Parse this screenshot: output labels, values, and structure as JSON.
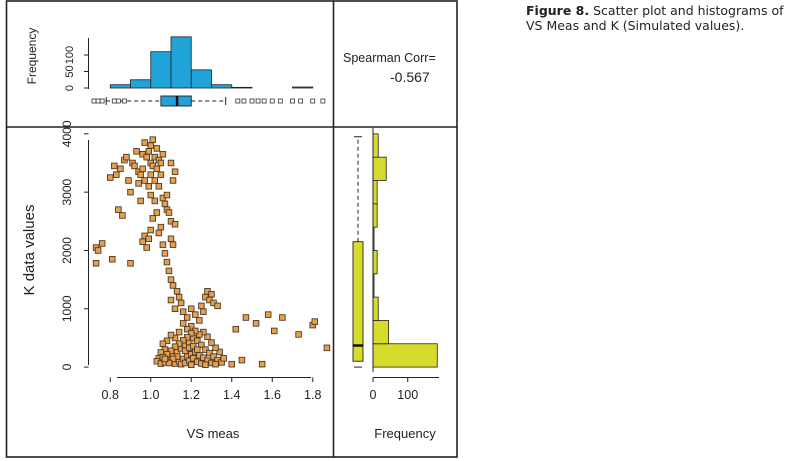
{
  "caption": {
    "label": "Figure 8.",
    "text": "Scatter plot and histograms of VS Meas and K (Simulated values)."
  },
  "colors": {
    "frame": "#222222",
    "top_hist_fill": "#1fa3d9",
    "right_hist_fill": "#d7dc2c",
    "point_fill": "#e6a04e",
    "point_stroke": "#4a3a28"
  },
  "chart_data": {
    "type": "scatter",
    "title": "",
    "xlabel": "VS meas",
    "ylabel": "K data values",
    "xlim": [
      0.7,
      1.9
    ],
    "ylim": [
      -50,
      4100
    ],
    "xticks": [
      "0.8",
      "1.0",
      "1.2",
      "1.4",
      "1.6",
      "1.8"
    ],
    "yticks": [
      "0",
      "1000",
      "2000",
      "3000",
      "4000"
    ],
    "annotation": {
      "label": "Spearman Corr=",
      "value": "-0.567"
    },
    "top_histogram": {
      "ylabel": "Frequency",
      "yticks": [
        "0",
        "50",
        "100"
      ],
      "bin_edges": [
        0.7,
        0.8,
        0.9,
        1.0,
        1.1,
        1.2,
        1.3,
        1.4,
        1.5,
        1.6,
        1.7,
        1.8,
        1.9
      ],
      "counts": [
        0,
        10,
        25,
        110,
        155,
        55,
        10,
        2,
        0,
        0,
        3,
        0
      ],
      "boxplot": {
        "whisker_low": 0.78,
        "q1": 1.05,
        "median": 1.13,
        "q3": 1.2,
        "whisker_high": 1.37,
        "outliers": [
          0.72,
          0.74,
          0.76,
          0.82,
          0.84,
          0.87,
          1.43,
          1.46,
          1.5,
          1.53,
          1.56,
          1.6,
          1.64,
          1.7,
          1.74,
          1.8,
          1.85
        ]
      }
    },
    "right_histogram": {
      "xlabel": "Frequency",
      "xticks": [
        "0",
        "100"
      ],
      "xlim": [
        0,
        190
      ],
      "bin_edges": [
        0,
        400,
        800,
        1200,
        1600,
        2000,
        2400,
        2800,
        3200,
        3600,
        4000
      ],
      "counts": [
        185,
        45,
        15,
        3,
        12,
        3,
        12,
        12,
        38,
        15
      ],
      "boxplot": {
        "whisker_low": 0,
        "q1": 100,
        "median": 370,
        "q3": 2150,
        "whisker_high": 3950
      }
    },
    "points": [
      [
        0.73,
        2050
      ],
      [
        0.74,
        2000
      ],
      [
        0.73,
        1780
      ],
      [
        0.76,
        2120
      ],
      [
        0.81,
        1850
      ],
      [
        0.82,
        3450
      ],
      [
        0.8,
        3250
      ],
      [
        0.83,
        3300
      ],
      [
        0.84,
        2700
      ],
      [
        0.86,
        2600
      ],
      [
        0.85,
        3400
      ],
      [
        0.87,
        3550
      ],
      [
        0.88,
        3600
      ],
      [
        0.89,
        3200
      ],
      [
        0.9,
        3000
      ],
      [
        0.9,
        1780
      ],
      [
        0.91,
        3500
      ],
      [
        0.92,
        3450
      ],
      [
        0.93,
        3700
      ],
      [
        0.94,
        3350
      ],
      [
        0.94,
        3150
      ],
      [
        0.95,
        3300
      ],
      [
        0.95,
        2850
      ],
      [
        0.96,
        3400
      ],
      [
        0.96,
        3650
      ],
      [
        0.97,
        3850
      ],
      [
        0.97,
        3200
      ],
      [
        0.98,
        3600
      ],
      [
        0.99,
        3700
      ],
      [
        0.99,
        3100
      ],
      [
        1.0,
        3800
      ],
      [
        1.0,
        3500
      ],
      [
        1.0,
        3300
      ],
      [
        1.01,
        3900
      ],
      [
        1.01,
        3450
      ],
      [
        1.02,
        3600
      ],
      [
        1.02,
        3200
      ],
      [
        1.03,
        3750
      ],
      [
        1.03,
        3400
      ],
      [
        1.04,
        3550
      ],
      [
        1.04,
        3100
      ],
      [
        1.05,
        3500
      ],
      [
        1.05,
        3300
      ],
      [
        1.06,
        3650
      ],
      [
        1.06,
        2900
      ],
      [
        1.07,
        2800
      ],
      [
        1.08,
        2700
      ],
      [
        1.08,
        2950
      ],
      [
        1.09,
        2650
      ],
      [
        1.1,
        2500
      ],
      [
        1.1,
        2200
      ],
      [
        1.11,
        2100
      ],
      [
        1.12,
        2450
      ],
      [
        1.0,
        2950
      ],
      [
        1.02,
        2850
      ],
      [
        1.01,
        2550
      ],
      [
        1.03,
        2650
      ],
      [
        1.04,
        2300
      ],
      [
        0.97,
        2250
      ],
      [
        0.98,
        2050
      ],
      [
        0.96,
        2150
      ],
      [
        0.99,
        2200
      ],
      [
        1.0,
        2350
      ],
      [
        1.05,
        2400
      ],
      [
        1.06,
        2100
      ],
      [
        1.07,
        1950
      ],
      [
        1.08,
        1800
      ],
      [
        1.09,
        1650
      ],
      [
        1.1,
        1500
      ],
      [
        1.11,
        1400
      ],
      [
        1.13,
        1300
      ],
      [
        1.14,
        1200
      ],
      [
        1.15,
        1100
      ],
      [
        1.12,
        1000
      ],
      [
        1.1,
        1150
      ],
      [
        1.16,
        950
      ],
      [
        1.18,
        850
      ],
      [
        1.2,
        1000
      ],
      [
        1.22,
        900
      ],
      [
        1.25,
        1050
      ],
      [
        1.27,
        1200
      ],
      [
        1.28,
        1300
      ],
      [
        1.3,
        1250
      ],
      [
        1.29,
        1150
      ],
      [
        1.31,
        1100
      ],
      [
        1.33,
        1050
      ],
      [
        1.26,
        950
      ],
      [
        1.24,
        800
      ],
      [
        1.2,
        700
      ],
      [
        1.18,
        650
      ],
      [
        1.16,
        750
      ],
      [
        1.14,
        600
      ],
      [
        1.12,
        500
      ],
      [
        1.1,
        550
      ],
      [
        1.08,
        450
      ],
      [
        1.06,
        400
      ],
      [
        1.07,
        300
      ],
      [
        1.05,
        250
      ],
      [
        1.04,
        150
      ],
      [
        1.03,
        100
      ],
      [
        1.05,
        60
      ],
      [
        1.07,
        80
      ],
      [
        1.09,
        120
      ],
      [
        1.11,
        200
      ],
      [
        1.13,
        260
      ],
      [
        1.15,
        320
      ],
      [
        1.17,
        380
      ],
      [
        1.19,
        430
      ],
      [
        1.21,
        500
      ],
      [
        1.23,
        450
      ],
      [
        1.25,
        380
      ],
      [
        1.27,
        300
      ],
      [
        1.29,
        240
      ],
      [
        1.31,
        180
      ],
      [
        1.33,
        120
      ],
      [
        1.35,
        80
      ],
      [
        1.36,
        150
      ],
      [
        1.34,
        260
      ],
      [
        1.32,
        330
      ],
      [
        1.3,
        420
      ],
      [
        1.28,
        520
      ],
      [
        1.26,
        600
      ],
      [
        1.24,
        560
      ],
      [
        1.22,
        620
      ],
      [
        1.2,
        580
      ],
      [
        1.18,
        510
      ],
      [
        1.16,
        460
      ],
      [
        1.14,
        400
      ],
      [
        1.12,
        350
      ],
      [
        1.1,
        280
      ],
      [
        1.08,
        220
      ],
      [
        1.06,
        170
      ],
      [
        1.1,
        90
      ],
      [
        1.12,
        60
      ],
      [
        1.14,
        100
      ],
      [
        1.16,
        140
      ],
      [
        1.18,
        180
      ],
      [
        1.2,
        220
      ],
      [
        1.22,
        260
      ],
      [
        1.24,
        200
      ],
      [
        1.26,
        160
      ],
      [
        1.28,
        110
      ],
      [
        1.3,
        70
      ],
      [
        1.32,
        50
      ],
      [
        1.15,
        50
      ],
      [
        1.17,
        70
      ],
      [
        1.19,
        110
      ],
      [
        1.21,
        150
      ],
      [
        1.23,
        90
      ],
      [
        1.25,
        60
      ],
      [
        1.27,
        40
      ],
      [
        1.2,
        40
      ],
      [
        1.13,
        180
      ],
      [
        1.11,
        140
      ],
      [
        1.09,
        70
      ],
      [
        1.07,
        140
      ],
      [
        1.17,
        280
      ],
      [
        1.19,
        330
      ],
      [
        1.21,
        360
      ],
      [
        1.23,
        300
      ],
      [
        1.42,
        650
      ],
      [
        1.47,
        850
      ],
      [
        1.52,
        750
      ],
      [
        1.55,
        50
      ],
      [
        1.58,
        900
      ],
      [
        1.61,
        620
      ],
      [
        1.65,
        850
      ],
      [
        1.73,
        560
      ],
      [
        1.8,
        720
      ],
      [
        1.81,
        780
      ],
      [
        1.87,
        330
      ],
      [
        1.4,
        50
      ],
      [
        1.45,
        120
      ],
      [
        1.12,
        3350
      ],
      [
        1.1,
        3500
      ],
      [
        1.11,
        3200
      ]
    ]
  }
}
